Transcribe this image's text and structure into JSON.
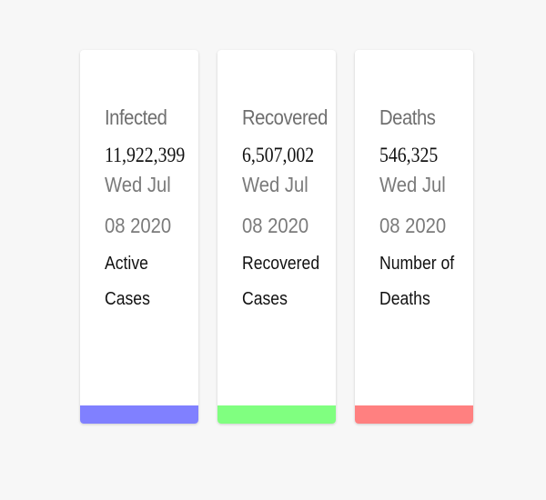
{
  "cards": [
    {
      "title": "Infected",
      "count": "11,922,399",
      "date": "Wed Jul 08 2020",
      "description": "Active Cases",
      "accent_color": "#8080ff"
    },
    {
      "title": "Recovered",
      "count": "6,507,002",
      "date": "Wed Jul 08 2020",
      "description": "Recovered Cases",
      "accent_color": "#80ff80"
    },
    {
      "title": "Deaths",
      "count": "546,325",
      "date": "Wed Jul 08 2020",
      "description": "Number of Deaths",
      "accent_color": "#ff8080"
    }
  ]
}
